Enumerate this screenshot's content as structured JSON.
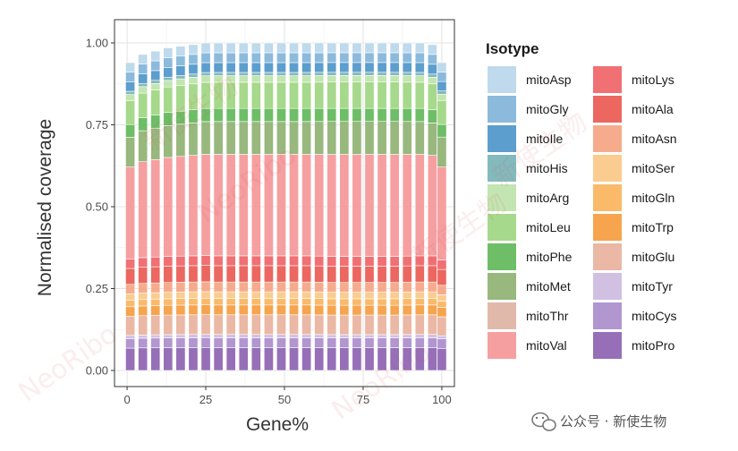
{
  "chart_data": {
    "type": "bar",
    "stacked": true,
    "title": "",
    "xlabel": "Gene%",
    "ylabel": "Normalised coverage",
    "xlim": [
      0,
      100
    ],
    "ylim": [
      0,
      1.0
    ],
    "x_ticks": [
      "0",
      "25",
      "50",
      "75",
      "100"
    ],
    "y_ticks": [
      "0.00",
      "0.25",
      "0.50",
      "0.75",
      "1.00"
    ],
    "x": [
      1,
      5,
      9,
      13,
      17,
      21,
      25,
      29,
      33,
      37,
      41,
      45,
      49,
      53,
      57,
      61,
      65,
      69,
      73,
      77,
      81,
      85,
      89,
      93,
      97,
      100
    ],
    "legend_title": "Isotype",
    "legend_position": "right",
    "series": [
      {
        "name": "mitoPro",
        "color": "#8B5FB0",
        "value": 0.07
      },
      {
        "name": "mitoCys",
        "color": "#A98BCB",
        "value": 0.03
      },
      {
        "name": "mitoTyr",
        "color": "#CDB9E0",
        "value": 0.01
      },
      {
        "name": "mitoGlu",
        "color": "#E8B09A",
        "value": 0.06
      },
      {
        "name": "mitoTrp",
        "color": "#F69A3C",
        "value": 0.03
      },
      {
        "name": "mitoGln",
        "color": "#F9B35A",
        "value": 0.02
      },
      {
        "name": "mitoSer",
        "color": "#FBC784",
        "value": 0.02
      },
      {
        "name": "mitoAsn",
        "color": "#F5A37F",
        "value": 0.03
      },
      {
        "name": "mitoAla",
        "color": "#E9574F",
        "value": 0.05
      },
      {
        "name": "mitoLys",
        "color": "#EE6165",
        "value": 0.03
      },
      {
        "name": "mitoVal",
        "color": "#F59597",
        "value": 0.31
      },
      {
        "name": "mitoThr",
        "color": "#DDB1A2",
        "value": 0.0
      },
      {
        "name": "mitoMet",
        "color": "#8DB070",
        "value": 0.1
      },
      {
        "name": "mitoPhe",
        "color": "#5DB755",
        "value": 0.04
      },
      {
        "name": "mitoLeu",
        "color": "#9CD57E",
        "value": 0.08
      },
      {
        "name": "mitoArg",
        "color": "#BCE2A8",
        "value": 0.02
      },
      {
        "name": "mitoHis",
        "color": "#75B3B6",
        "value": 0.01
      },
      {
        "name": "mitoIle",
        "color": "#4A94C8",
        "value": 0.03
      },
      {
        "name": "mitoGly",
        "color": "#7FB2D8",
        "value": 0.03
      },
      {
        "name": "mitoAsp",
        "color": "#B7D6EA",
        "value": 0.03
      }
    ],
    "shape_factors": [
      0.93,
      0.96,
      0.97,
      0.98,
      0.985,
      0.99,
      0.995,
      1.0,
      1.0,
      1.0,
      1.0,
      1.0,
      1.0,
      1.0,
      1.0,
      1.005,
      1.01,
      1.01,
      1.01,
      1.01,
      1.01,
      1.01,
      1.005,
      1.0,
      0.99,
      0.95
    ],
    "bar_totals": [
      0.94,
      0.965,
      0.975,
      0.985,
      0.99,
      0.995,
      1.0,
      1.0,
      1.0,
      1.0,
      1.0,
      1.0,
      1.0,
      1.0,
      1.0,
      1.0,
      1.0,
      1.0,
      1.0,
      1.0,
      1.0,
      1.0,
      1.0,
      1.0,
      0.995,
      0.94
    ]
  },
  "legend_columns": [
    [
      "mitoAsp",
      "mitoGly",
      "mitoIle",
      "mitoHis",
      "mitoArg",
      "mitoLeu",
      "mitoPhe",
      "mitoMet",
      "mitoThr",
      "mitoVal"
    ],
    [
      "mitoLys",
      "mitoAla",
      "mitoAsn",
      "mitoSer",
      "mitoGln",
      "mitoTrp",
      "mitoGlu",
      "mitoTyr",
      "mitoCys",
      "mitoPro"
    ]
  ],
  "watermark": {
    "chinese": "新使生物",
    "latin": "NeoRibo"
  },
  "footer": {
    "icon": "wechat-icon",
    "text": "公众号 · 新使生物"
  }
}
